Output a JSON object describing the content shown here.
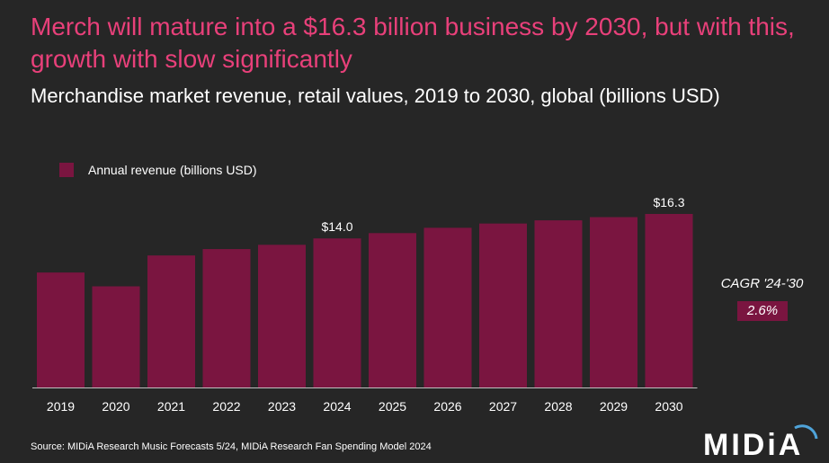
{
  "headline": "Merch will mature into a $16.3 billion business by 2030, but with this, growth with slow significantly",
  "chart_data": {
    "type": "bar",
    "title": "Merchandise market revenue, retail values, 2019 to 2030, global (billions USD)",
    "categories": [
      "2019",
      "2020",
      "2021",
      "2022",
      "2023",
      "2024",
      "2025",
      "2026",
      "2027",
      "2028",
      "2029",
      "2030"
    ],
    "series": [
      {
        "name": "Annual revenue (billions USD)",
        "values": [
          10.8,
          9.5,
          12.4,
          13.0,
          13.4,
          14.0,
          14.5,
          15.0,
          15.4,
          15.7,
          16.0,
          16.3
        ],
        "color": "#7a1540"
      }
    ],
    "data_labels": [
      {
        "category": "2024",
        "text": "$14.0"
      },
      {
        "category": "2030",
        "text": "$16.3"
      }
    ],
    "ylim": [
      0,
      19
    ],
    "grid": false,
    "legend": "top-left"
  },
  "cagr": {
    "title": "CAGR '24-'30",
    "value": "2.6%"
  },
  "source": "Source: MIDiA Research Music Forecasts 5/24, MIDiA Research Fan Spending Model 2024",
  "logo": {
    "text": "MIDiA",
    "accent": "#4fa3d9"
  },
  "colors": {
    "background": "#262626",
    "headline": "#e8407a",
    "bar": "#7a1540"
  }
}
